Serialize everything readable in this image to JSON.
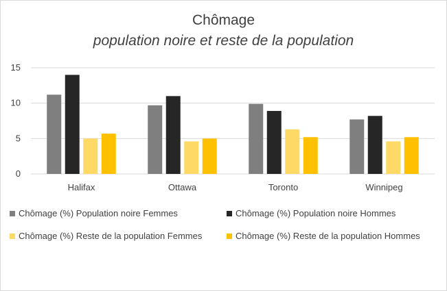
{
  "chart_data": {
    "type": "bar",
    "title": "Chômage",
    "subtitle": "population noire et reste de la population",
    "categories": [
      "Halifax",
      "Ottawa",
      "Toronto",
      "Winnipeg"
    ],
    "series": [
      {
        "name": "Chômage (%) Population noire Femmes",
        "color": "#7f7f7f",
        "values": [
          11.2,
          9.7,
          9.9,
          7.7
        ]
      },
      {
        "name": "Chômage (%) Population noire Hommes",
        "color": "#262626",
        "values": [
          14.0,
          11.0,
          8.9,
          8.2
        ]
      },
      {
        "name": "Chômage (%) Reste de la population Femmes",
        "color": "#ffd966",
        "values": [
          5.0,
          4.6,
          6.3,
          4.6
        ]
      },
      {
        "name": "Chômage (%) Reste de la population Hommes",
        "color": "#ffc000",
        "values": [
          5.7,
          5.0,
          5.2,
          5.2
        ]
      }
    ],
    "y_ticks": [
      "0",
      "5",
      "10",
      "15"
    ],
    "ylim": [
      0,
      15
    ],
    "grid": true,
    "legend_position": "bottom"
  }
}
